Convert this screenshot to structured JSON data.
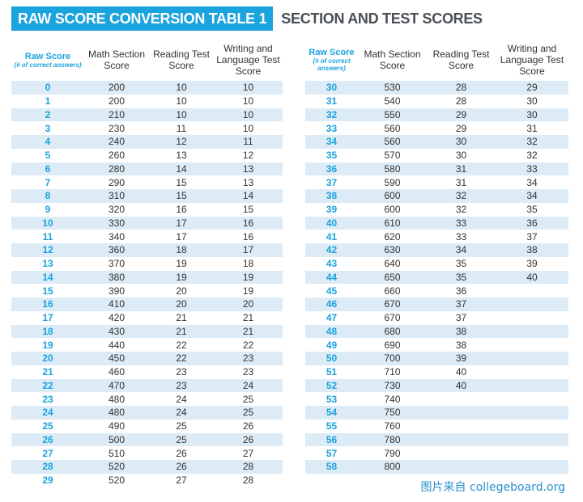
{
  "title": {
    "main": "RAW SCORE CONVERSION TABLE 1",
    "sub": "SECTION AND TEST SCORES"
  },
  "headers": {
    "raw": "Raw Score",
    "raw_note": "(# of correct answers)",
    "math": "Math Section Score",
    "reading": "Reading Test Score",
    "writing": "Writing and Language Test Score"
  },
  "left_rows": [
    [
      "0",
      "200",
      "10",
      "10"
    ],
    [
      "1",
      "200",
      "10",
      "10"
    ],
    [
      "2",
      "210",
      "10",
      "10"
    ],
    [
      "3",
      "230",
      "11",
      "10"
    ],
    [
      "4",
      "240",
      "12",
      "11"
    ],
    [
      "5",
      "260",
      "13",
      "12"
    ],
    [
      "6",
      "280",
      "14",
      "13"
    ],
    [
      "7",
      "290",
      "15",
      "13"
    ],
    [
      "8",
      "310",
      "15",
      "14"
    ],
    [
      "9",
      "320",
      "16",
      "15"
    ],
    [
      "10",
      "330",
      "17",
      "16"
    ],
    [
      "11",
      "340",
      "17",
      "16"
    ],
    [
      "12",
      "360",
      "18",
      "17"
    ],
    [
      "13",
      "370",
      "19",
      "18"
    ],
    [
      "14",
      "380",
      "19",
      "19"
    ],
    [
      "15",
      "390",
      "20",
      "19"
    ],
    [
      "16",
      "410",
      "20",
      "20"
    ],
    [
      "17",
      "420",
      "21",
      "21"
    ],
    [
      "18",
      "430",
      "21",
      "21"
    ],
    [
      "19",
      "440",
      "22",
      "22"
    ],
    [
      "20",
      "450",
      "22",
      "23"
    ],
    [
      "21",
      "460",
      "23",
      "23"
    ],
    [
      "22",
      "470",
      "23",
      "24"
    ],
    [
      "23",
      "480",
      "24",
      "25"
    ],
    [
      "24",
      "480",
      "24",
      "25"
    ],
    [
      "25",
      "490",
      "25",
      "26"
    ],
    [
      "26",
      "500",
      "25",
      "26"
    ],
    [
      "27",
      "510",
      "26",
      "27"
    ],
    [
      "28",
      "520",
      "26",
      "28"
    ],
    [
      "29",
      "520",
      "27",
      "28"
    ]
  ],
  "right_rows": [
    [
      "30",
      "530",
      "28",
      "29"
    ],
    [
      "31",
      "540",
      "28",
      "30"
    ],
    [
      "32",
      "550",
      "29",
      "30"
    ],
    [
      "33",
      "560",
      "29",
      "31"
    ],
    [
      "34",
      "560",
      "30",
      "32"
    ],
    [
      "35",
      "570",
      "30",
      "32"
    ],
    [
      "36",
      "580",
      "31",
      "33"
    ],
    [
      "37",
      "590",
      "31",
      "34"
    ],
    [
      "38",
      "600",
      "32",
      "34"
    ],
    [
      "39",
      "600",
      "32",
      "35"
    ],
    [
      "40",
      "610",
      "33",
      "36"
    ],
    [
      "41",
      "620",
      "33",
      "37"
    ],
    [
      "42",
      "630",
      "34",
      "38"
    ],
    [
      "43",
      "640",
      "35",
      "39"
    ],
    [
      "44",
      "650",
      "35",
      "40"
    ],
    [
      "45",
      "660",
      "36",
      ""
    ],
    [
      "46",
      "670",
      "37",
      ""
    ],
    [
      "47",
      "670",
      "37",
      ""
    ],
    [
      "48",
      "680",
      "38",
      ""
    ],
    [
      "49",
      "690",
      "38",
      ""
    ],
    [
      "50",
      "700",
      "39",
      ""
    ],
    [
      "51",
      "710",
      "40",
      ""
    ],
    [
      "52",
      "730",
      "40",
      ""
    ],
    [
      "53",
      "740",
      "",
      ""
    ],
    [
      "54",
      "750",
      "",
      ""
    ],
    [
      "55",
      "760",
      "",
      ""
    ],
    [
      "56",
      "780",
      "",
      ""
    ],
    [
      "57",
      "790",
      "",
      ""
    ],
    [
      "58",
      "800",
      "",
      ""
    ]
  ],
  "watermark": "图片来自 collegeboard.org",
  "colors": {
    "accent": "#1ba3dd",
    "shade": "#dcebf6"
  }
}
